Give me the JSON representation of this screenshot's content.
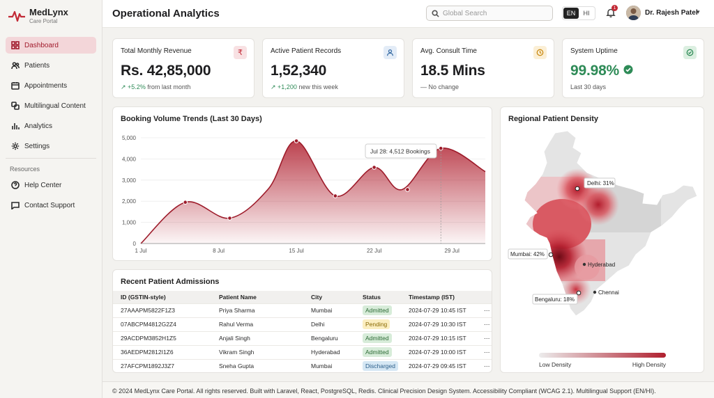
{
  "app": {
    "name": "MedLynx",
    "subtitle": "Care Portal"
  },
  "sidebar": {
    "items": [
      {
        "label": "Dashboard",
        "icon": "dashboard-icon",
        "active": true
      },
      {
        "label": "Patients",
        "icon": "users-icon"
      },
      {
        "label": "Appointments",
        "icon": "calendar-icon"
      },
      {
        "label": "Multilingual Content",
        "icon": "translate-icon"
      },
      {
        "label": "Analytics",
        "icon": "bar-chart-icon"
      },
      {
        "label": "Settings",
        "icon": "gear-icon"
      }
    ],
    "resources_label": "Resources",
    "resources": [
      {
        "label": "Help Center",
        "icon": "help-icon"
      },
      {
        "label": "Contact Support",
        "icon": "chat-icon"
      }
    ]
  },
  "header": {
    "title": "Operational Analytics",
    "search_placeholder": "Global Search",
    "lang_active": "EN",
    "lang_other": "HI",
    "notification_count": "1",
    "user_name": "Dr. Rajesh Patel"
  },
  "kpis": [
    {
      "title": "Total Monthly Revenue",
      "value": "Rs. 42,85,000",
      "delta": "+5.2%",
      "note": "from last month",
      "icon": "₹",
      "icon_color": "#c22a36",
      "icon_bg": "#f8e1e3"
    },
    {
      "title": "Active Patient Records",
      "value": "1,52,340",
      "delta": "+1,200",
      "note": "new this week",
      "icon": "person",
      "icon_color": "#3a6ea5",
      "icon_bg": "#e3ecf7"
    },
    {
      "title": "Avg. Consult Time",
      "value": "18.5 Mins",
      "delta": "—",
      "note": "No change",
      "icon": "clock",
      "icon_color": "#c98a12",
      "icon_bg": "#fbefd6"
    },
    {
      "title": "System Uptime",
      "value": "99.98%",
      "delta": "",
      "note": "Last 30 days",
      "icon": "check",
      "icon_color": "#2e8b57",
      "icon_bg": "#dcefe1"
    }
  ],
  "booking": {
    "title": "Booking Volume Trends (Last 30 Days)",
    "tooltip_date": "Jul 28:",
    "tooltip_value": "4,512 Bookings"
  },
  "chart_data": {
    "type": "area",
    "title": "Booking Volume Trends (Last 30 Days)",
    "x_ticks": [
      "1 Jul",
      "8 Jul",
      "15 Jul",
      "22 Jul",
      "29 Jul"
    ],
    "y_ticks": [
      "0",
      "1,000",
      "2,000",
      "3,000",
      "4,000",
      "5,000"
    ],
    "ylim": [
      0,
      5000
    ],
    "points": [
      {
        "x": 1,
        "y": 0
      },
      {
        "x": 5,
        "y": 1950
      },
      {
        "x": 9,
        "y": 1200
      },
      {
        "x": 12.5,
        "y": 2600
      },
      {
        "x": 15,
        "y": 4850
      },
      {
        "x": 18.5,
        "y": 2250
      },
      {
        "x": 22,
        "y": 3600
      },
      {
        "x": 24.5,
        "y": 2550
      },
      {
        "x": 28,
        "y": 4500
      },
      {
        "x": 32,
        "y": 3400
      }
    ],
    "markers": [
      {
        "x": 5,
        "y": 1950
      },
      {
        "x": 9,
        "y": 1200
      },
      {
        "x": 15,
        "y": 4850
      },
      {
        "x": 18.5,
        "y": 2250
      },
      {
        "x": 22,
        "y": 3600
      },
      {
        "x": 25,
        "y": 2550
      },
      {
        "x": 28,
        "y": 4500
      }
    ],
    "highlight": {
      "x": 28,
      "y": 4512
    },
    "color": "#b0202f"
  },
  "map": {
    "title": "Regional Patient Density",
    "labels": [
      {
        "text": "Delhi: 31%"
      },
      {
        "text": "Mumbai: 42%"
      },
      {
        "text": "Hyderabad"
      },
      {
        "text": "Chennai"
      },
      {
        "text": "Bengaluru: 18%"
      }
    ],
    "legend_low": "Low Density",
    "legend_high": "High Density"
  },
  "admissions": {
    "title": "Recent Patient Admissions",
    "columns": [
      "ID (GSTIN-style)",
      "Patient Name",
      "City",
      "Status",
      "Timestamp (IST)"
    ],
    "rows": [
      {
        "id": "27AAAPM5822F1Z3",
        "name": "Priya Sharma",
        "city": "Mumbai",
        "status": "Admitted",
        "ts": "2024-07-29 10:45 IST"
      },
      {
        "id": "07ABCPM4812G2Z4",
        "name": "Rahul Verma",
        "city": "Delhi",
        "status": "Pending",
        "ts": "2024-07-29 10:30 IST"
      },
      {
        "id": "29ACDPM3852H1Z5",
        "name": "Anjali Singh",
        "city": "Bengaluru",
        "status": "Admitted",
        "ts": "2024-07-29 10:15 IST"
      },
      {
        "id": "36AEDPM2812I1Z6",
        "name": "Vikram Singh",
        "city": "Hyderabad",
        "status": "Admitted",
        "ts": "2024-07-29 10:00 IST"
      },
      {
        "id": "27AFCPM1892J3Z7",
        "name": "Sneha Gupta",
        "city": "Mumbai",
        "status": "Discharged",
        "ts": "2024-07-29 09:45 IST"
      }
    ],
    "more": "⋯"
  },
  "footer": {
    "text": "© 2024 MedLynx Care Portal. All rights reserved. Built with Laravel, React, PostgreSQL, Redis. Clinical Precision Design System. Accessibility Compliant (WCAG 2.1). Multilingual Support (EN/HI)."
  }
}
